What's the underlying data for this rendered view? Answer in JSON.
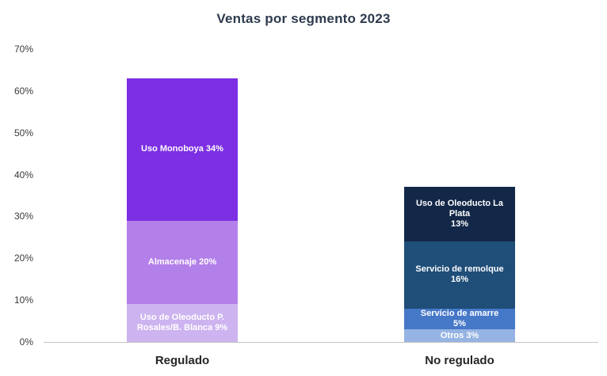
{
  "title": "Ventas por segmento 2023",
  "colors": {
    "axis_line": "#c5c5c5",
    "tick_text": "#3a3a3a",
    "title_text": "#2e3a4e",
    "category_text": "#262626",
    "segment_text": "#ffffff"
  },
  "chart_data": {
    "type": "bar",
    "stacked": true,
    "title": "Ventas por segmento 2023",
    "xlabel": "",
    "ylabel": "",
    "ylim": [
      0,
      70
    ],
    "yticks": [
      "0%",
      "10%",
      "20%",
      "30%",
      "40%",
      "50%",
      "60%",
      "70%"
    ],
    "grid": false,
    "legend": "none (labels inside segments)",
    "categories": [
      "Regulado",
      "No regulado"
    ],
    "totals": [
      63,
      37
    ],
    "bars": [
      {
        "category": "Regulado",
        "segments": [
          {
            "name": "Uso de Oleoducto P. Rosales/B. Blanca",
            "value": 9,
            "color": "#cdb4f0",
            "lines": [
              "Uso de Oleoducto P.",
              "Rosales/B. Blanca 9%"
            ]
          },
          {
            "name": "Almacenaje",
            "value": 20,
            "color": "#b380ea",
            "lines": [
              "Almacenaje 20%"
            ]
          },
          {
            "name": "Uso Monoboya",
            "value": 34,
            "color": "#7c2fe3",
            "lines": [
              "Uso Monoboya 34%"
            ]
          }
        ]
      },
      {
        "category": "No regulado",
        "segments": [
          {
            "name": "Otros",
            "value": 3,
            "color": "#96b4e3",
            "lines": [
              "Otros 3%"
            ]
          },
          {
            "name": "Servicio de amarre",
            "value": 5,
            "color": "#4678c8",
            "lines": [
              "Servicio de amarre",
              "5%"
            ]
          },
          {
            "name": "Servicio de remolque",
            "value": 16,
            "color": "#1f4e79",
            "lines": [
              "Servicio de remolque",
              "16%"
            ]
          },
          {
            "name": "Uso de Oleoducto La Plata",
            "value": 13,
            "color": "#132848",
            "lines": [
              "Uso de Oleoducto La Plata",
              "13%"
            ]
          }
        ]
      }
    ]
  }
}
